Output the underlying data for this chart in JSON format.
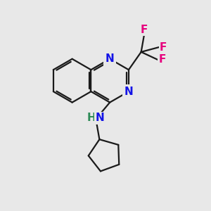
{
  "background_color": "#e8e8e8",
  "bond_color": "#1a1a1a",
  "bond_width": 1.6,
  "atom_colors": {
    "N": "#1414e6",
    "F": "#e6007d",
    "NH_N": "#1414e6",
    "NH_H": "#2e8b57"
  },
  "font_size_atom": 11,
  "font_size_F": 11,
  "xlim": [
    0,
    10
  ],
  "ylim": [
    0,
    10
  ]
}
